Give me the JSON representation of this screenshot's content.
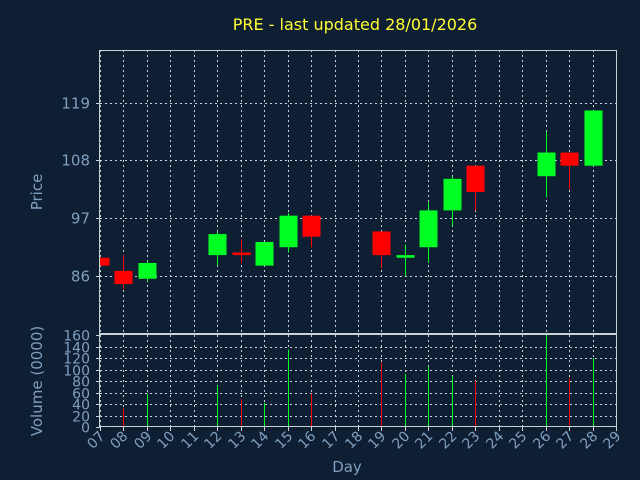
{
  "chart_data": {
    "type": "candlestick",
    "title": "PRE - last updated 28/01/2026",
    "xlabel": "Day",
    "ylabel": "Price",
    "volume_label": "Volume (0000)",
    "x_ticks": [
      "07",
      "08",
      "09",
      "10",
      "11",
      "12",
      "13",
      "14",
      "15",
      "16",
      "17",
      "18",
      "19",
      "20",
      "21",
      "22",
      "23",
      "24",
      "25",
      "26",
      "27",
      "28",
      "29"
    ],
    "x_range": [
      7,
      29
    ],
    "price_ticks": [
      86,
      97,
      108,
      119
    ],
    "price_range": [
      75,
      129
    ],
    "volume_ticks": [
      0,
      20,
      40,
      60,
      80,
      100,
      120,
      140,
      160
    ],
    "volume_range": [
      0,
      160
    ],
    "colors": {
      "up": "#00ff22",
      "down": "#ff0000",
      "background": "#0f1f33",
      "title": "#ffff33",
      "axis_text": "#7f9fbf"
    },
    "candles": [
      {
        "day": 7,
        "open": 89.5,
        "high": 89.5,
        "low": 88.0,
        "close": 88.0,
        "volume": 0
      },
      {
        "day": 8,
        "open": 87.0,
        "high": 90.0,
        "low": 83.5,
        "close": 84.5,
        "volume": 32
      },
      {
        "day": 9,
        "open": 85.5,
        "high": 89.0,
        "low": 85.0,
        "close": 88.5,
        "volume": 58
      },
      {
        "day": 12,
        "open": 90.0,
        "high": 94.5,
        "low": 88.0,
        "close": 94.0,
        "volume": 72
      },
      {
        "day": 13,
        "open": 90.5,
        "high": 93.0,
        "low": 88.5,
        "close": 90.0,
        "volume": 48
      },
      {
        "day": 14,
        "open": 88.0,
        "high": 92.5,
        "low": 88.0,
        "close": 92.5,
        "volume": 42
      },
      {
        "day": 15,
        "open": 91.5,
        "high": 98.0,
        "low": 90.5,
        "close": 97.5,
        "volume": 135
      },
      {
        "day": 16,
        "open": 97.5,
        "high": 97.5,
        "low": 91.5,
        "close": 93.5,
        "volume": 58
      },
      {
        "day": 19,
        "open": 94.5,
        "high": 94.5,
        "low": 87.5,
        "close": 90.0,
        "volume": 112
      },
      {
        "day": 20,
        "open": 89.5,
        "high": 92.0,
        "low": 86.0,
        "close": 90.0,
        "volume": 92
      },
      {
        "day": 21,
        "open": 91.5,
        "high": 100.0,
        "low": 88.5,
        "close": 98.5,
        "volume": 105
      },
      {
        "day": 22,
        "open": 98.5,
        "high": 105.0,
        "low": 95.5,
        "close": 104.5,
        "volume": 88
      },
      {
        "day": 23,
        "open": 107.0,
        "high": 107.0,
        "low": 98.5,
        "close": 102.0,
        "volume": 80
      },
      {
        "day": 26,
        "open": 105.0,
        "high": 113.5,
        "low": 101.0,
        "close": 109.5,
        "volume": 160
      },
      {
        "day": 27,
        "open": 109.5,
        "high": 109.5,
        "low": 102.5,
        "close": 107.0,
        "volume": 85
      },
      {
        "day": 28,
        "open": 107.0,
        "high": 117.5,
        "low": 107.0,
        "close": 117.5,
        "volume": 120
      }
    ],
    "grid": true
  }
}
